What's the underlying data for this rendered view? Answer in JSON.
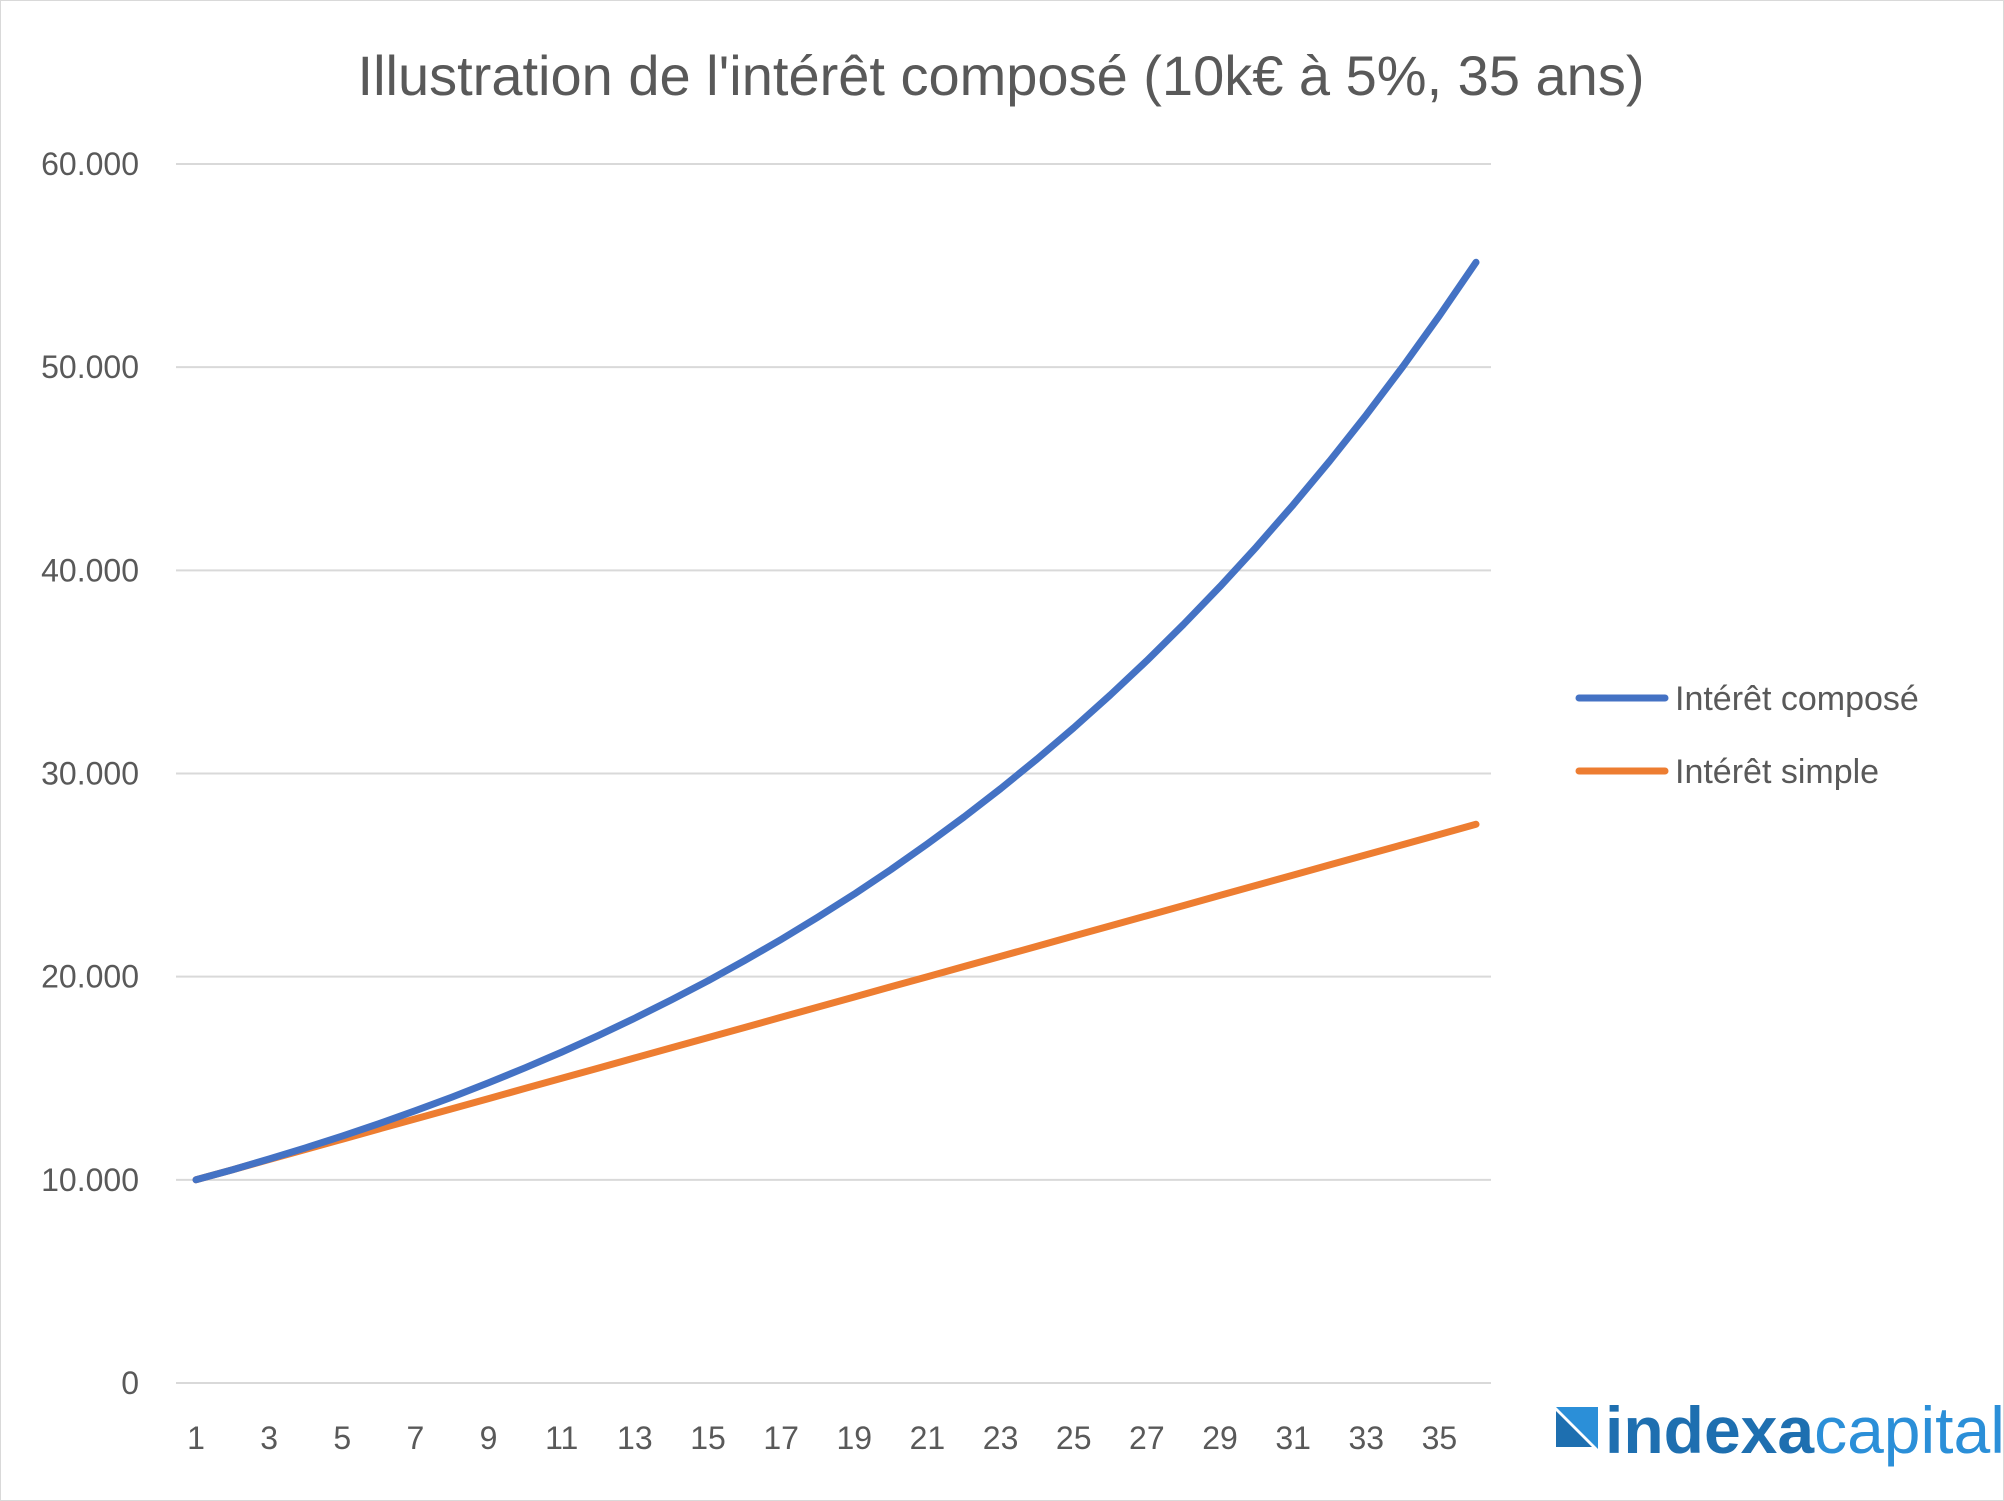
{
  "chart_data": {
    "type": "line",
    "title": "Illustration de l'intérêt composé (10k€ à 5%, 35 ans)",
    "xlabel": "",
    "ylabel": "",
    "ylim": [
      0,
      60000
    ],
    "y_ticks": [
      0,
      10000,
      20000,
      30000,
      40000,
      50000,
      60000
    ],
    "y_tick_labels": [
      "0",
      "10.000",
      "20.000",
      "30.000",
      "40.000",
      "50.000",
      "60.000"
    ],
    "x": [
      1,
      2,
      3,
      4,
      5,
      6,
      7,
      8,
      9,
      10,
      11,
      12,
      13,
      14,
      15,
      16,
      17,
      18,
      19,
      20,
      21,
      22,
      23,
      24,
      25,
      26,
      27,
      28,
      29,
      30,
      31,
      32,
      33,
      34,
      35,
      36
    ],
    "x_tick_labels": [
      "1",
      "3",
      "5",
      "7",
      "9",
      "11",
      "13",
      "15",
      "17",
      "19",
      "21",
      "23",
      "25",
      "27",
      "29",
      "31",
      "33",
      "35"
    ],
    "grid": true,
    "legend_position": "right",
    "series": [
      {
        "name": "Intérêt composé",
        "color": "#4472C4",
        "values": [
          10000,
          10500,
          11025,
          11576,
          12155,
          12763,
          13401,
          14071,
          14775,
          15513,
          16289,
          17103,
          17959,
          18856,
          19799,
          20789,
          21829,
          22920,
          24066,
          25270,
          26533,
          27860,
          29253,
          30715,
          32251,
          33864,
          35557,
          37335,
          39201,
          41161,
          43219,
          45380,
          47649,
          50032,
          52533,
          55160
        ]
      },
      {
        "name": "Intérêt simple",
        "color": "#ED7D31",
        "values": [
          10000,
          10500,
          11000,
          11500,
          12000,
          12500,
          13000,
          13500,
          14000,
          14500,
          15000,
          15500,
          16000,
          16500,
          17000,
          17500,
          18000,
          18500,
          19000,
          19500,
          20000,
          20500,
          21000,
          21500,
          22000,
          22500,
          23000,
          23500,
          24000,
          24500,
          25000,
          25500,
          26000,
          26500,
          27000,
          27500
        ]
      }
    ]
  },
  "logo": {
    "part1": "indexa",
    "part2": "capital",
    "color1": "#1e6fb0",
    "color2": "#2b8fd8",
    "icon": "indexa-logo-icon"
  }
}
